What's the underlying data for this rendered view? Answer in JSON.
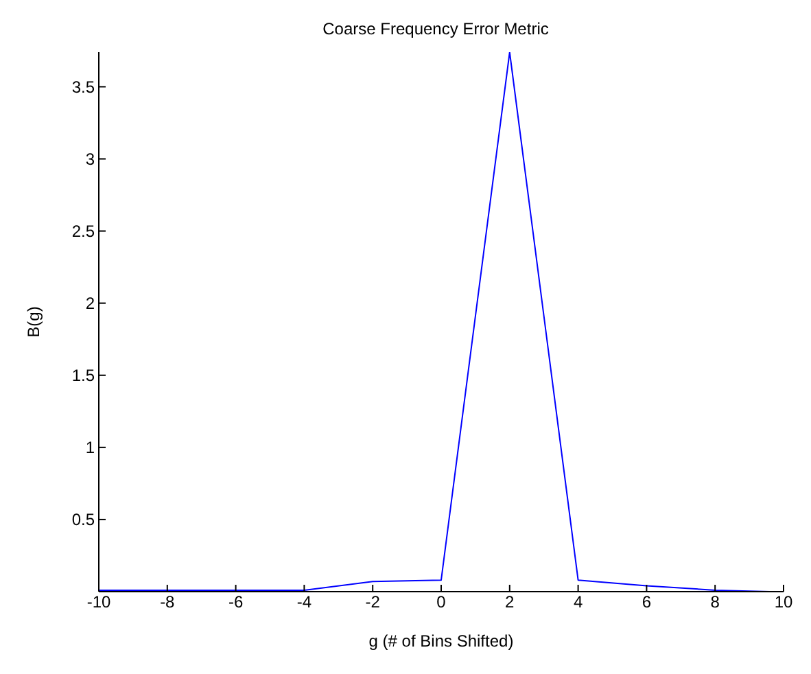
{
  "chart_data": {
    "type": "line",
    "title": "Coarse Frequency Error Metric",
    "xlabel": "g (# of Bins Shifted)",
    "ylabel": "B(g)",
    "x": [
      -10,
      -8,
      -6,
      -4,
      -2,
      0,
      2,
      4,
      6,
      8,
      9.6
    ],
    "series": [
      {
        "color": "#0000ff",
        "values": [
          0.01,
          0.01,
          0.01,
          0.01,
          0.07,
          0.08,
          3.74,
          0.08,
          0.04,
          0.01,
          0
        ]
      }
    ],
    "xlim": [
      -10,
      10
    ],
    "xticks": [
      -10,
      -8,
      -6,
      -4,
      -2,
      0,
      2,
      4,
      6,
      8,
      10
    ],
    "ylim": [
      0,
      3.74
    ],
    "yticks": [
      0.5,
      1,
      1.5,
      2,
      2.5,
      3,
      3.5
    ],
    "grid": false,
    "legend": false,
    "marker": "none",
    "line_style": "solid"
  }
}
